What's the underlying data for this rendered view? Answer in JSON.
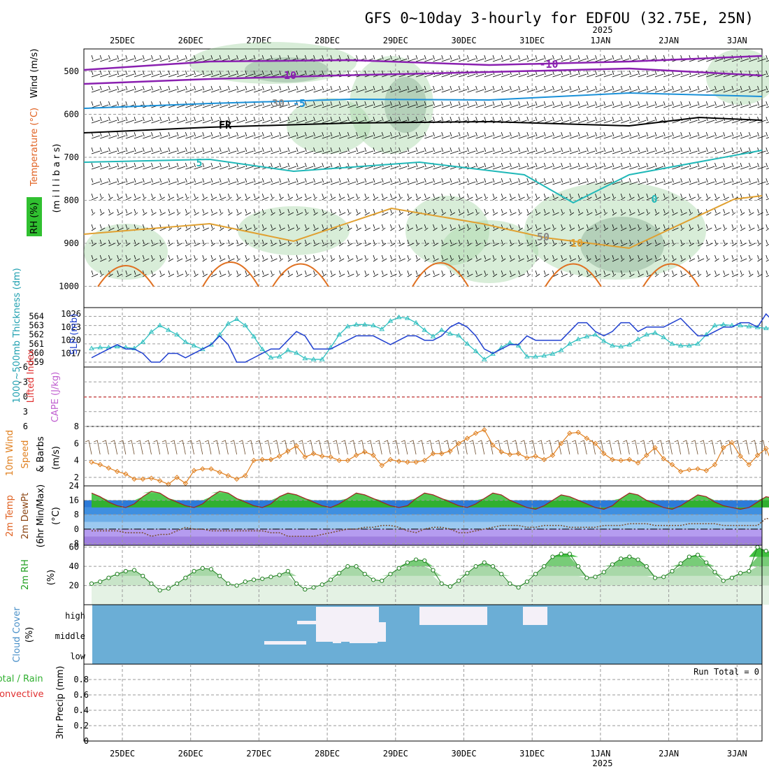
{
  "title": "GFS 0~10day 3-hourly for EDFOU (32.75E, 25N)",
  "dates": [
    "25DEC",
    "26DEC",
    "27DEC",
    "28DEC",
    "29DEC",
    "30DEC",
    "31DEC",
    "1JAN",
    "2JAN",
    "3JAN"
  ],
  "year_label": "2025",
  "colors": {
    "temp": "#e0a030",
    "wind": "#e08020",
    "rh": "#30c030",
    "thickness": "#30c0c0",
    "slp": "#2040d0",
    "cloud": "#6baed6",
    "cape": "#c060d0",
    "li": "#e03030"
  },
  "panels": {
    "upper_air": {
      "ylabel": "millibars",
      "ylabel_text": "(m i l l i b a r s)",
      "side_labels": [
        "RH (%)",
        "Temperature (°C)",
        "Wind (m/s)"
      ],
      "yticks": [
        "500",
        "600",
        "700",
        "800",
        "900",
        "1000"
      ],
      "isotherm_labels": [
        "10",
        "-5",
        "FR",
        "5",
        "0",
        "-10",
        "10",
        "30",
        "50"
      ]
    },
    "thickness_slp": {
      "label_thickness": "1000~500mb Thickness (dm)",
      "label_slp": "SLP (mb)",
      "left_ticks": [
        "564",
        "563",
        "562",
        "561",
        "560",
        "559"
      ],
      "right_ticks": [
        "1026",
        "1023",
        "1020",
        "1017"
      ]
    },
    "li_cape": {
      "label_li": "Lifted Index",
      "label_cape": "CAPE (J/kg)",
      "left_ticks": [
        "-6",
        "-3",
        "0",
        "3",
        "6"
      ]
    },
    "wind10m": {
      "label": "10m Wind Speed & Barbs (m/s)",
      "ticks": [
        "8",
        "6",
        "4",
        "2"
      ]
    },
    "temp2m": {
      "label": "2m Temp 2m DewPt (6hr Min/Max) (°C)",
      "ticks": [
        "24",
        "16",
        "8",
        "0",
        "-8"
      ]
    },
    "rh2m": {
      "label": "2m RH (%)",
      "ticks": [
        "60",
        "40",
        "20"
      ]
    },
    "cloud": {
      "label": "Cloud Cover (%)",
      "levels": [
        "high",
        "middle",
        "low"
      ]
    },
    "precip": {
      "label": "3hr Precip (mm)",
      "legend_total": "Total / Rain",
      "legend_conv": "Convective",
      "ticks": [
        "0.8",
        "0.6",
        "0.4",
        "0.2",
        "0"
      ],
      "run_total": "Run Total = 0"
    }
  },
  "chart_data": [
    {
      "type": "line",
      "title": "1000~500mb Thickness (dm)",
      "ylim": [
        559,
        564.5
      ],
      "x": [
        0,
        1,
        2,
        3,
        4,
        5,
        6,
        7,
        8,
        9,
        10,
        11,
        12,
        13,
        14,
        15,
        16,
        17,
        18,
        19,
        20,
        21,
        22,
        23,
        24,
        25,
        26,
        27,
        28,
        29,
        30,
        31,
        32,
        33,
        34,
        35,
        36,
        37,
        38,
        39,
        40,
        41,
        42,
        43,
        44,
        45,
        46,
        47,
        48,
        49,
        50,
        51,
        52,
        53,
        54,
        55,
        56,
        57,
        58,
        59,
        60,
        61,
        62,
        63,
        64,
        65,
        66,
        67,
        68,
        69,
        70,
        71,
        72,
        73,
        74,
        75,
        76,
        77,
        78,
        79,
        80,
        81,
        82
      ],
      "series": [
        {
          "name": "Thickness",
          "values": [
            560.5,
            560.6,
            560.6,
            560.7,
            560.6,
            560.5,
            561.2,
            562.3,
            563.0,
            562.5,
            562.0,
            561.2,
            560.8,
            560.4,
            560.9,
            562.0,
            563.2,
            563.7,
            563.0,
            561.8,
            560.4,
            559.5,
            559.6,
            560.3,
            560.0,
            559.4,
            559.3,
            559.3,
            560.6,
            562.0,
            562.9,
            563.1,
            563.1,
            563.0,
            562.6,
            563.5,
            563.9,
            563.8,
            563.3,
            562.5,
            561.8,
            562.5,
            562.1,
            561.9,
            561.0,
            560.2,
            559.3,
            559.9,
            560.6,
            561.1,
            560.8,
            559.6,
            559.6,
            559.7,
            559.9,
            560.3,
            561.0,
            561.5,
            561.8,
            562.0,
            561.3,
            560.8,
            560.7,
            560.9,
            561.5,
            562.0,
            562.2,
            561.7,
            561.0,
            560.8,
            560.8,
            561.0,
            562.0,
            563.0,
            563.1,
            563.0,
            563.0,
            562.9,
            562.8,
            562.7,
            562.8,
            562.9,
            562.6
          ]
        }
      ]
    },
    {
      "type": "line",
      "title": "SLP (mb)",
      "ylim": [
        1015,
        1026.5
      ],
      "x": [
        0,
        1,
        2,
        3,
        4,
        5,
        6,
        7,
        8,
        9,
        10,
        11,
        12,
        13,
        14,
        15,
        16,
        17,
        18,
        19,
        20,
        21,
        22,
        23,
        24,
        25,
        26,
        27,
        28,
        29,
        30,
        31,
        32,
        33,
        34,
        35,
        36,
        37,
        38,
        39,
        40,
        41,
        42,
        43,
        44,
        45,
        46,
        47,
        48,
        49,
        50,
        51,
        52,
        53,
        54,
        55,
        56,
        57,
        58,
        59,
        60,
        61,
        62,
        63,
        64,
        65,
        66,
        67,
        68,
        69,
        70,
        71,
        72,
        73,
        74,
        75,
        76,
        77,
        78,
        79,
        80,
        81,
        82
      ],
      "series": [
        {
          "name": "SLP",
          "values": [
            1016,
            1017,
            1018,
            1019,
            1018,
            1018,
            1017,
            1015,
            1015,
            1017,
            1017,
            1016,
            1017,
            1018,
            1019,
            1021,
            1019,
            1015,
            1015,
            1016,
            1017,
            1018,
            1018,
            1020,
            1022,
            1021,
            1018,
            1018,
            1018,
            1019,
            1020,
            1021,
            1021,
            1021,
            1020,
            1019,
            1020,
            1021,
            1021,
            1020,
            1020,
            1021,
            1023,
            1024,
            1023,
            1021,
            1018,
            1017,
            1018,
            1019,
            1019,
            1021,
            1020,
            1020,
            1020,
            1020,
            1022,
            1024,
            1024,
            1022,
            1021,
            1022,
            1024,
            1024,
            1022,
            1023,
            1023,
            1023,
            1024,
            1025,
            1023,
            1021,
            1021,
            1022,
            1023,
            1023,
            1024,
            1024,
            1023,
            1026,
            1024,
            1023,
            1023
          ]
        }
      ]
    },
    {
      "type": "line",
      "title": "10m Wind Speed (m/s)",
      "ylim": [
        1,
        8
      ],
      "x": [
        0,
        1,
        2,
        3,
        4,
        5,
        6,
        7,
        8,
        9,
        10,
        11,
        12,
        13,
        14,
        15,
        16,
        17,
        18,
        19,
        20,
        21,
        22,
        23,
        24,
        25,
        26,
        27,
        28,
        29,
        30,
        31,
        32,
        33,
        34,
        35,
        36,
        37,
        38,
        39,
        40,
        41,
        42,
        43,
        44,
        45,
        46,
        47,
        48,
        49,
        50,
        51,
        52,
        53,
        54,
        55,
        56,
        57,
        58,
        59,
        60,
        61,
        62,
        63,
        64,
        65,
        66,
        67,
        68,
        69,
        70,
        71,
        72,
        73,
        74,
        75,
        76,
        77,
        78,
        79,
        80,
        81,
        82
      ],
      "series": [
        {
          "name": "Wind speed",
          "values": [
            3.8,
            3.5,
            3.1,
            2.7,
            2.4,
            1.8,
            1.8,
            1.9,
            1.6,
            1.2,
            2.0,
            1.3,
            2.8,
            3.0,
            3.0,
            2.6,
            2.2,
            1.8,
            2.2,
            4.0,
            4.1,
            4.1,
            4.5,
            5.1,
            5.7,
            4.4,
            4.8,
            4.5,
            4.4,
            4.0,
            4.0,
            4.6,
            5.0,
            4.6,
            3.4,
            4.1,
            3.9,
            3.8,
            3.8,
            4.0,
            4.8,
            4.8,
            5.1,
            6.0,
            6.6,
            7.2,
            7.6,
            5.8,
            5.0,
            4.7,
            4.8,
            4.3,
            4.5,
            4.1,
            4.6,
            6.0,
            7.2,
            7.3,
            6.6,
            6.0,
            4.8,
            4.1,
            4.0,
            4.1,
            3.7,
            4.6,
            5.5,
            4.2,
            3.5,
            2.7,
            2.9,
            3.0,
            2.8,
            3.5,
            5.5,
            6.1,
            4.5,
            3.5,
            4.6,
            5.4,
            3.0,
            2.2,
            4.8
          ]
        }
      ]
    },
    {
      "type": "area",
      "title": "2m Temp (°C)",
      "ylim": [
        -9,
        24
      ],
      "x": [
        0,
        1,
        2,
        3,
        4,
        5,
        6,
        7,
        8,
        9,
        10,
        11,
        12,
        13,
        14,
        15,
        16,
        17,
        18,
        19,
        20,
        21,
        22,
        23,
        24,
        25,
        26,
        27,
        28,
        29,
        30,
        31,
        32,
        33,
        34,
        35,
        36,
        37,
        38,
        39,
        40,
        41,
        42,
        43,
        44,
        45,
        46,
        47,
        48,
        49,
        50,
        51,
        52,
        53,
        54,
        55,
        56,
        57,
        58,
        59,
        60,
        61,
        62,
        63,
        64,
        65,
        66,
        67,
        68,
        69,
        70,
        71,
        72,
        73,
        74,
        75,
        76,
        77,
        78,
        79,
        80,
        81,
        82
      ],
      "series": [
        {
          "name": "Temp",
          "values": [
            20,
            18,
            15,
            13,
            12,
            14,
            18,
            21,
            20,
            17,
            15,
            13,
            12,
            14,
            18,
            21,
            20,
            17,
            15,
            13,
            12,
            14,
            18,
            20,
            19,
            17,
            15,
            13,
            12,
            14,
            17,
            20,
            19,
            17,
            15,
            13,
            12,
            13,
            17,
            20,
            19,
            17,
            15,
            13,
            12,
            14,
            17,
            20,
            19,
            16,
            14,
            12,
            11,
            13,
            16,
            19,
            18,
            16,
            14,
            12,
            11,
            13,
            17,
            20,
            19,
            16,
            14,
            12,
            11,
            13,
            16,
            19,
            18,
            15,
            13,
            12,
            11,
            12,
            15,
            18,
            17,
            14,
            12
          ]
        },
        {
          "name": "DewPt",
          "values": [
            -1,
            -1,
            -1,
            -1,
            -2,
            -2,
            -2,
            -4,
            -3,
            -3,
            -1,
            1,
            0,
            0,
            -1,
            -1,
            -1,
            -1,
            -1,
            -1,
            -1,
            -2,
            -2,
            -4,
            -4,
            -4,
            -4,
            -3,
            -2,
            -1,
            0,
            0,
            1,
            1,
            2,
            2,
            1,
            -1,
            -2,
            0,
            1,
            1,
            0,
            -2,
            -2,
            -1,
            0,
            1,
            2,
            2,
            2,
            1,
            1,
            2,
            2,
            2,
            1,
            1,
            1,
            1,
            2,
            2,
            2,
            3,
            3,
            3,
            2,
            2,
            2,
            2,
            3,
            3,
            3,
            3,
            2,
            2,
            2,
            2,
            2,
            6,
            5,
            3,
            3
          ]
        }
      ]
    },
    {
      "type": "area",
      "title": "2m RH (%)",
      "ylim": [
        0,
        62
      ],
      "x": [
        0,
        1,
        2,
        3,
        4,
        5,
        6,
        7,
        8,
        9,
        10,
        11,
        12,
        13,
        14,
        15,
        16,
        17,
        18,
        19,
        20,
        21,
        22,
        23,
        24,
        25,
        26,
        27,
        28,
        29,
        30,
        31,
        32,
        33,
        34,
        35,
        36,
        37,
        38,
        39,
        40,
        41,
        42,
        43,
        44,
        45,
        46,
        47,
        48,
        49,
        50,
        51,
        52,
        53,
        54,
        55,
        56,
        57,
        58,
        59,
        60,
        61,
        62,
        63,
        64,
        65,
        66,
        67,
        68,
        69,
        70,
        71,
        72,
        73,
        74,
        75,
        76,
        77,
        78,
        79,
        80,
        81,
        82
      ],
      "series": [
        {
          "name": "RH",
          "values": [
            22,
            24,
            28,
            32,
            35,
            36,
            30,
            22,
            15,
            17,
            22,
            28,
            35,
            38,
            37,
            30,
            22,
            20,
            24,
            26,
            27,
            29,
            31,
            35,
            22,
            16,
            18,
            21,
            26,
            33,
            40,
            40,
            32,
            26,
            25,
            32,
            38,
            44,
            47,
            46,
            36,
            22,
            19,
            25,
            33,
            40,
            44,
            40,
            32,
            22,
            18,
            24,
            32,
            40,
            50,
            53,
            53,
            40,
            28,
            29,
            34,
            42,
            48,
            50,
            47,
            40,
            28,
            29,
            35,
            43,
            50,
            52,
            44,
            34,
            25,
            28,
            33,
            35,
            60,
            56,
            53,
            50,
            47
          ]
        }
      ]
    },
    {
      "type": "area",
      "title": "3hr Precip (mm)",
      "ylim": [
        0,
        0.9
      ],
      "x": [
        0,
        82
      ],
      "series": [
        {
          "name": "Total / Rain",
          "values": [
            0,
            0
          ]
        }
      ]
    }
  ]
}
